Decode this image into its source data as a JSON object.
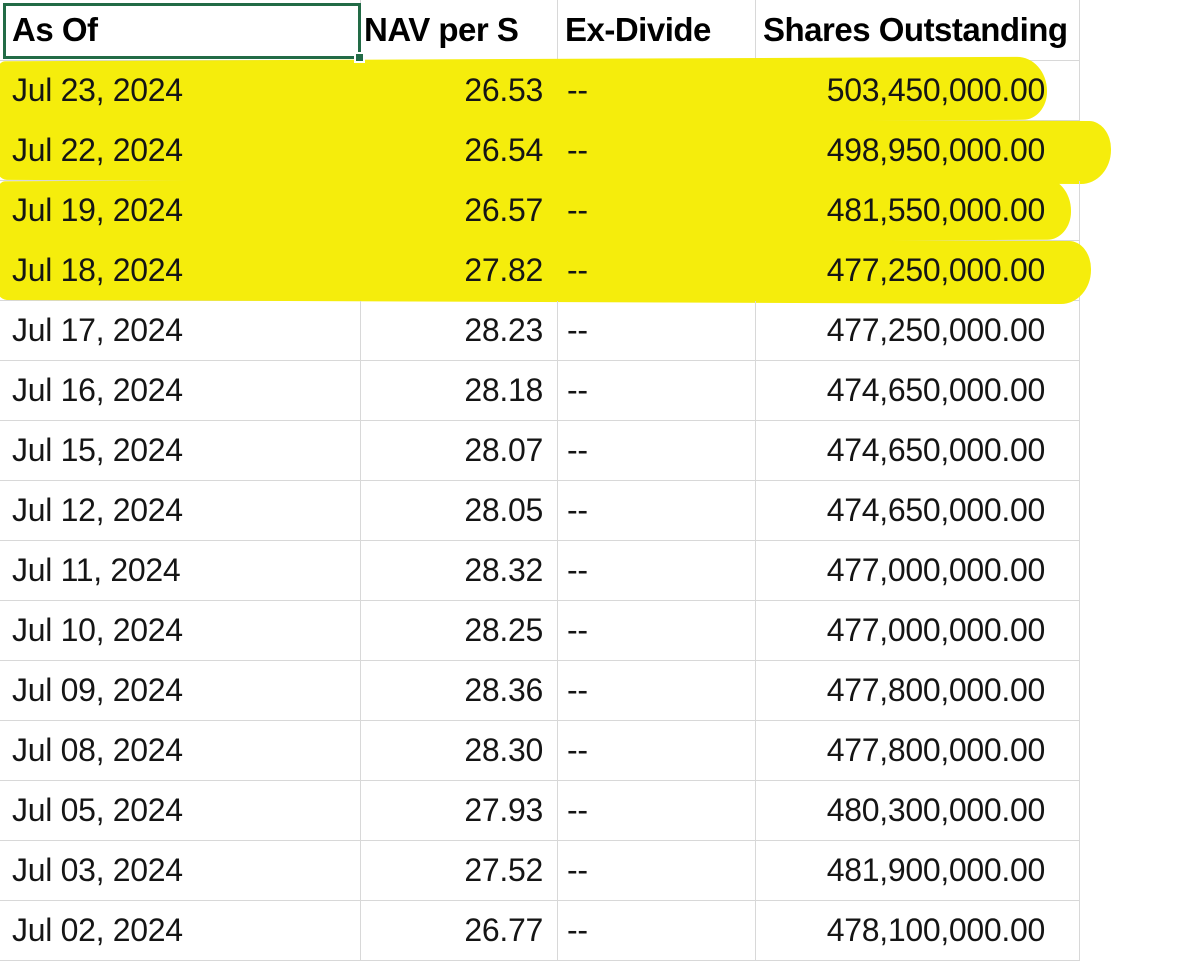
{
  "table": {
    "headers": [
      {
        "label": "As Of"
      },
      {
        "label": "NAV per S"
      },
      {
        "label": "Ex-Divide"
      },
      {
        "label": "Shares Outstanding"
      }
    ],
    "rows": [
      {
        "as_of": "Jul 23, 2024",
        "nav": "26.53",
        "ex_dividend": "--",
        "shares_outstanding": "503,450,000.00",
        "highlighted": true
      },
      {
        "as_of": "Jul 22, 2024",
        "nav": "26.54",
        "ex_dividend": "--",
        "shares_outstanding": "498,950,000.00",
        "highlighted": true
      },
      {
        "as_of": "Jul 19, 2024",
        "nav": "26.57",
        "ex_dividend": "--",
        "shares_outstanding": "481,550,000.00",
        "highlighted": true
      },
      {
        "as_of": "Jul 18, 2024",
        "nav": "27.82",
        "ex_dividend": "--",
        "shares_outstanding": "477,250,000.00",
        "highlighted": true
      },
      {
        "as_of": "Jul 17, 2024",
        "nav": "28.23",
        "ex_dividend": "--",
        "shares_outstanding": "477,250,000.00",
        "highlighted": false
      },
      {
        "as_of": "Jul 16, 2024",
        "nav": "28.18",
        "ex_dividend": "--",
        "shares_outstanding": "474,650,000.00",
        "highlighted": false
      },
      {
        "as_of": "Jul 15, 2024",
        "nav": "28.07",
        "ex_dividend": "--",
        "shares_outstanding": "474,650,000.00",
        "highlighted": false
      },
      {
        "as_of": "Jul 12, 2024",
        "nav": "28.05",
        "ex_dividend": "--",
        "shares_outstanding": "474,650,000.00",
        "highlighted": false
      },
      {
        "as_of": "Jul 11, 2024",
        "nav": "28.32",
        "ex_dividend": "--",
        "shares_outstanding": "477,000,000.00",
        "highlighted": false
      },
      {
        "as_of": "Jul 10, 2024",
        "nav": "28.25",
        "ex_dividend": "--",
        "shares_outstanding": "477,000,000.00",
        "highlighted": false
      },
      {
        "as_of": "Jul 09, 2024",
        "nav": "28.36",
        "ex_dividend": "--",
        "shares_outstanding": "477,800,000.00",
        "highlighted": false
      },
      {
        "as_of": "Jul 08, 2024",
        "nav": "28.30",
        "ex_dividend": "--",
        "shares_outstanding": "477,800,000.00",
        "highlighted": false
      },
      {
        "as_of": "Jul 05, 2024",
        "nav": "27.93",
        "ex_dividend": "--",
        "shares_outstanding": "480,300,000.00",
        "highlighted": false
      },
      {
        "as_of": "Jul 03, 2024",
        "nav": "27.52",
        "ex_dividend": "--",
        "shares_outstanding": "481,900,000.00",
        "highlighted": false
      },
      {
        "as_of": "Jul 02, 2024",
        "nav": "26.77",
        "ex_dividend": "--",
        "shares_outstanding": "478,100,000.00",
        "highlighted": false
      }
    ]
  },
  "selection": {
    "selected_header": "As Of"
  },
  "colors": {
    "highlight": "#F5ED0C",
    "selection_border": "#226B46",
    "gridline": "#D8D8D8"
  }
}
